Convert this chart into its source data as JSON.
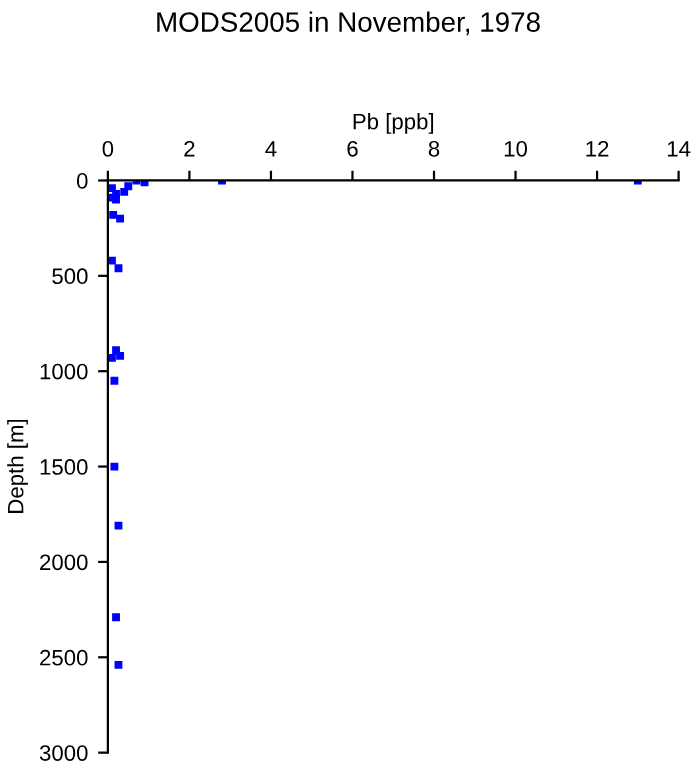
{
  "chart_data": {
    "type": "scatter",
    "title": "MODS2005 in November, 1978",
    "xlabel": "Pb [ppb]",
    "ylabel": "Depth [m]",
    "x": [
      13.0,
      2.8,
      0.7,
      0.9,
      0.1,
      0.5,
      0.2,
      0.1,
      0.4,
      0.2,
      0.13,
      0.3,
      0.1,
      0.26,
      0.2,
      0.3,
      0.1,
      0.16,
      0.16,
      0.26,
      0.2,
      0.26
    ],
    "values": [
      0,
      0,
      0,
      10,
      40,
      30,
      70,
      90,
      60,
      100,
      180,
      200,
      420,
      460,
      890,
      920,
      930,
      1050,
      1500,
      1810,
      2290,
      2540
    ],
    "color": "#0000ff",
    "marker": "square",
    "xlim": [
      0,
      14
    ],
    "xticks": [
      0,
      2,
      4,
      6,
      8,
      10,
      12,
      14
    ],
    "ylim": [
      3000,
      0
    ],
    "yticks": [
      0,
      500,
      1000,
      1500,
      2000,
      2500,
      3000
    ],
    "grid": false
  }
}
